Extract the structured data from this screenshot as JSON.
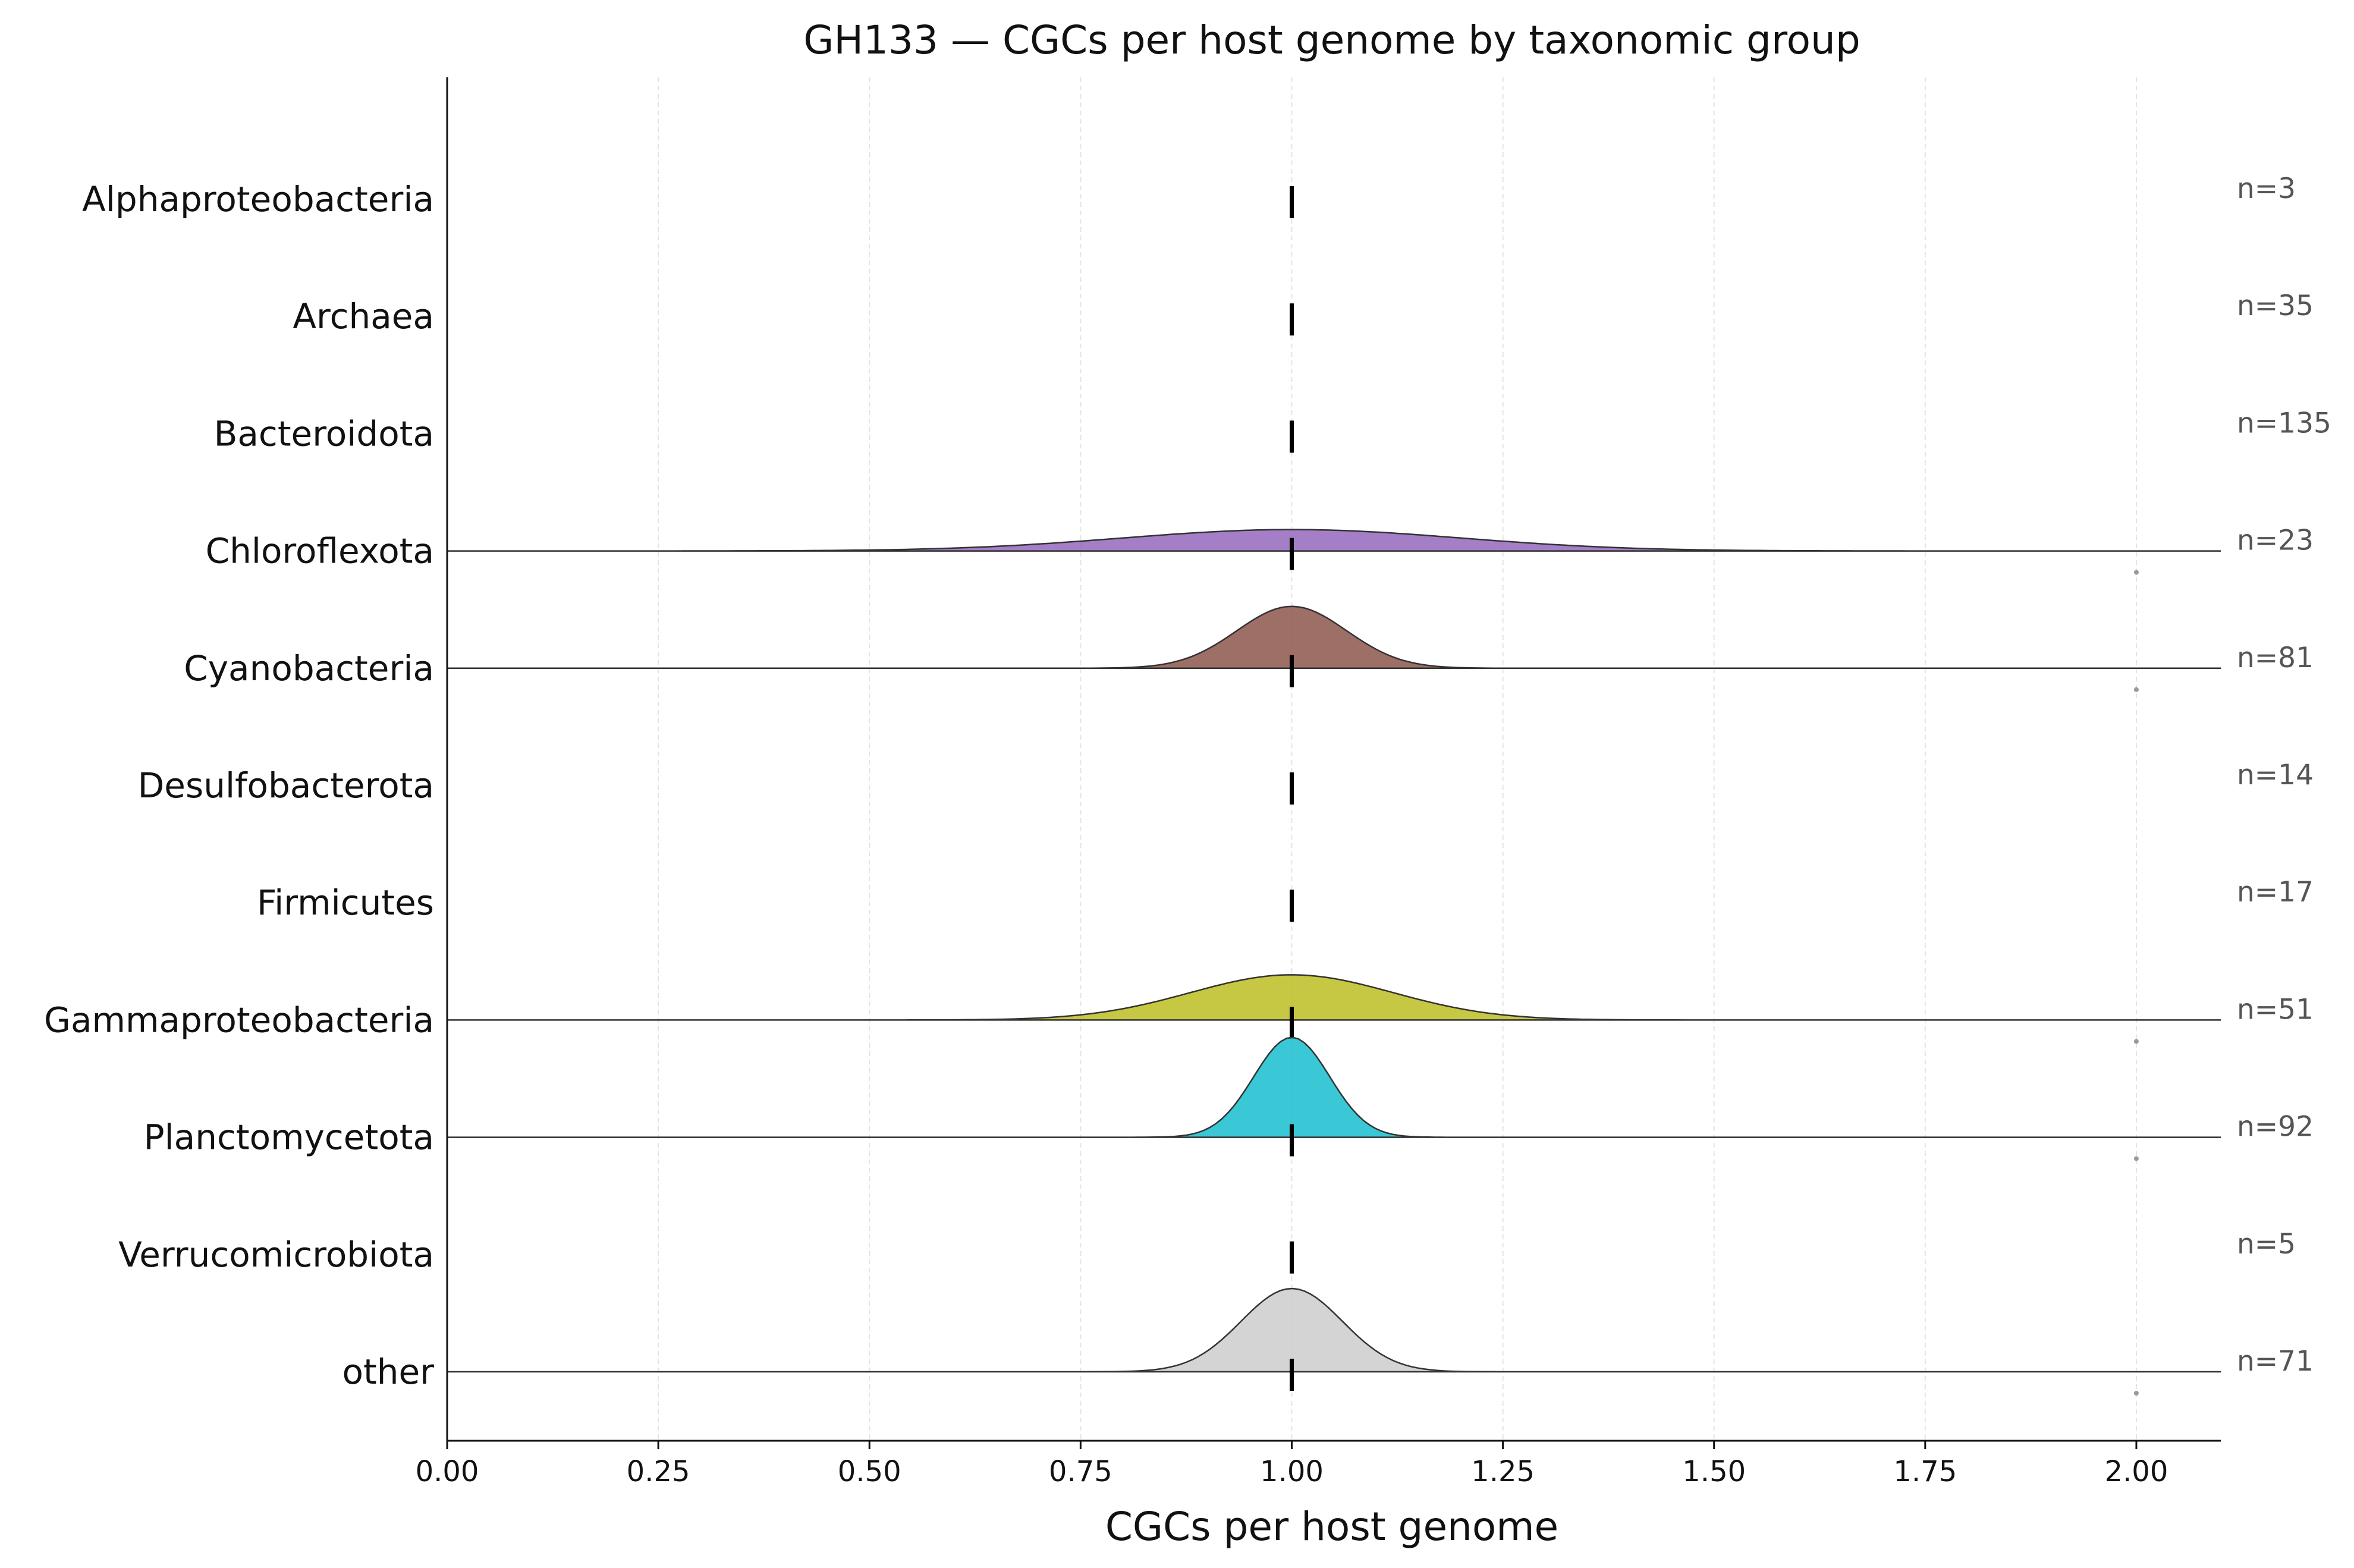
{
  "chart_data": {
    "type": "ridgeline",
    "title": "GH133 — CGCs per host genome by taxonomic group",
    "xlabel": "CGCs per host genome",
    "ylabel": "",
    "xlim": [
      0.0,
      2.1
    ],
    "xticks": [
      "0.00",
      "0.25",
      "0.50",
      "0.75",
      "1.00",
      "1.25",
      "1.50",
      "1.75",
      "2.00"
    ],
    "x_grid": true,
    "median_marker": 1.0,
    "groups": [
      {
        "name": "Alphaproteobacteria",
        "n_label": "n=3",
        "color": "",
        "has_density": false,
        "peak": 0,
        "sd": 0,
        "outlier": null
      },
      {
        "name": "Archaea",
        "n_label": "n=35",
        "color": "",
        "has_density": false,
        "peak": 0,
        "sd": 0,
        "outlier": null
      },
      {
        "name": "Bacteroidota",
        "n_label": "n=135",
        "color": "",
        "has_density": false,
        "peak": 0,
        "sd": 0,
        "outlier": null
      },
      {
        "name": "Chloroflexota",
        "n_label": "n=23",
        "color": "#9467bd",
        "has_density": true,
        "peak": 0.09,
        "sd": 0.2,
        "outlier": 2.0
      },
      {
        "name": "Cyanobacteria",
        "n_label": "n=81",
        "color": "#8c564b",
        "has_density": true,
        "peak": 0.26,
        "sd": 0.065,
        "outlier": 2.0
      },
      {
        "name": "Desulfobacterota",
        "n_label": "n=14",
        "color": "",
        "has_density": false,
        "peak": 0,
        "sd": 0,
        "outlier": null
      },
      {
        "name": "Firmicutes",
        "n_label": "n=17",
        "color": "",
        "has_density": false,
        "peak": 0,
        "sd": 0,
        "outlier": null
      },
      {
        "name": "Gammaproteobacteria",
        "n_label": "n=51",
        "color": "#bcbd22",
        "has_density": true,
        "peak": 0.19,
        "sd": 0.12,
        "outlier": 2.0
      },
      {
        "name": "Planctomycetota",
        "n_label": "n=92",
        "color": "#17becf",
        "has_density": true,
        "peak": 0.42,
        "sd": 0.045,
        "outlier": 2.0
      },
      {
        "name": "Verrucomicrobiota",
        "n_label": "n=5",
        "color": "",
        "has_density": false,
        "peak": 0,
        "sd": 0,
        "outlier": null
      },
      {
        "name": "other",
        "n_label": "n=71",
        "color": "#cccccc",
        "has_density": true,
        "peak": 0.35,
        "sd": 0.06,
        "outlier": 2.0
      }
    ]
  }
}
